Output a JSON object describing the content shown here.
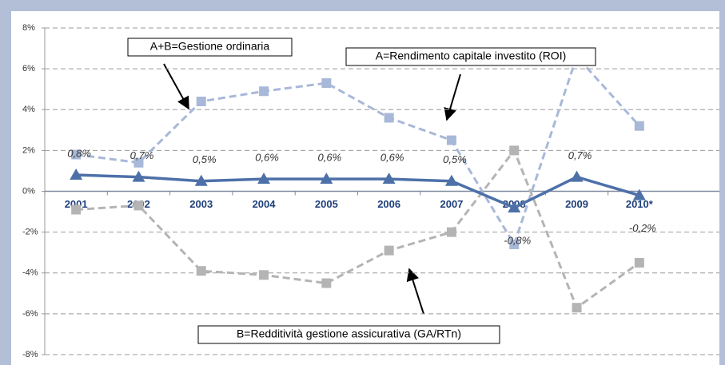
{
  "chart_data": {
    "type": "line",
    "categories": [
      "2001",
      "2002",
      "2003",
      "2004",
      "2005",
      "2006",
      "2007",
      "2008",
      "2009",
      "2010*"
    ],
    "series": [
      {
        "name": "A=Rendimento capitale investito (ROI)",
        "color": "#a8b8d8",
        "dash": true,
        "marker": "square",
        "values": [
          1.8,
          1.4,
          4.4,
          4.9,
          5.3,
          3.6,
          2.5,
          -2.6,
          6.6,
          3.2
        ]
      },
      {
        "name": "B=Redditività gestione assicurativa (GA/RTn)",
        "color": "#b4b4b4",
        "dash": true,
        "marker": "square",
        "values": [
          -0.9,
          -0.7,
          -3.9,
          -4.1,
          -4.5,
          -2.9,
          -2.0,
          2.0,
          -5.7,
          -3.5
        ]
      },
      {
        "name": "A+B=Gestione ordinaria",
        "color": "#4d70a8",
        "dash": false,
        "marker": "triangle",
        "values": [
          0.8,
          0.7,
          0.5,
          0.6,
          0.6,
          0.6,
          0.5,
          -0.8,
          0.7,
          -0.2
        ],
        "value_labels": [
          "0,8%",
          "0,7%",
          "0,5%",
          "0,6%",
          "0,6%",
          "0,6%",
          "0,5%",
          "-0,8%",
          "0,7%",
          "-0,2%"
        ]
      }
    ],
    "ylim": [
      -8,
      8
    ],
    "yticks": [
      {
        "value": -8,
        "label": "-8%"
      },
      {
        "value": -6,
        "label": "-6%"
      },
      {
        "value": -4,
        "label": "-4%"
      },
      {
        "value": -2,
        "label": "-2%"
      },
      {
        "value": 0,
        "label": "0%"
      },
      {
        "value": 2,
        "label": "2%"
      },
      {
        "value": 4,
        "label": "4%"
      },
      {
        "value": 6,
        "label": "6%"
      },
      {
        "value": 8,
        "label": "8%"
      }
    ],
    "grid": true
  }
}
